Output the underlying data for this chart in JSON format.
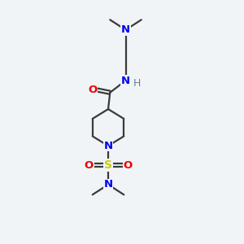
{
  "background_color": "#f0f4f7",
  "bond_color": "#3a3a3a",
  "N_color": "#0000ee",
  "O_color": "#ee0000",
  "S_color": "#cccc00",
  "H_color": "#708090",
  "font_size": 9.5,
  "figsize": [
    3.0,
    3.0
  ],
  "dpi": 100,
  "xlim": [
    0,
    10
  ],
  "ylim": [
    0,
    13
  ]
}
